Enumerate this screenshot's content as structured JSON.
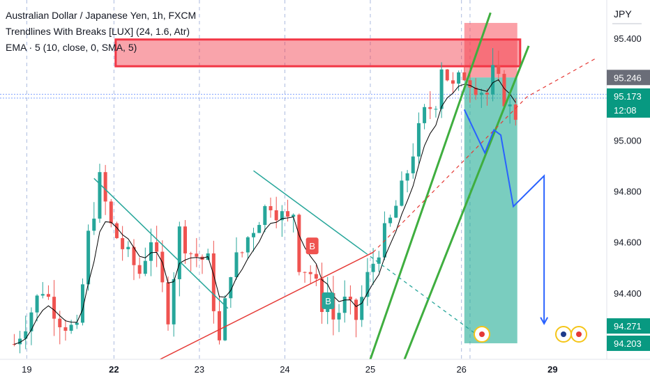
{
  "header": {
    "title": "Australian Dollar / Japanese Yen, 1h, FXCM",
    "indicator_1": "Trendlines With Breaks [LUX] (24, 1.6, Atr)",
    "indicator_2": "EMA · 5 (10, close, 0, SMA, 5)"
  },
  "currency_label": "JPY",
  "colors": {
    "up": "#26a69a",
    "down": "#ef5350",
    "channel": "#3fae3f",
    "projection": "#2962ff",
    "supply_zone": "#f23645",
    "price_tag": "#089981",
    "stop_zone": "#f7525f",
    "target_zone": "#22ab94",
    "trendline_red": "#e53935",
    "trendline_teal": "#26a69a"
  },
  "chart_data": {
    "type": "candlestick",
    "symbol": "AUDJPY",
    "timeframe": "1h",
    "y_axis": {
      "ticks": [
        "95.400",
        "95.000",
        "94.800",
        "94.600",
        "94.400"
      ],
      "range": [
        94.14,
        95.55
      ]
    },
    "x_axis": {
      "ticks": [
        "19",
        "22",
        "23",
        "24",
        "25",
        "26",
        "29"
      ],
      "bold_ticks": [
        "22",
        "29"
      ]
    },
    "price_labels": [
      {
        "label": "95.246",
        "value": 95.246,
        "color": "#6a6d78"
      },
      {
        "label": "95.173",
        "value": 95.173,
        "sub": "12:08",
        "color": "#089981"
      },
      {
        "label": "94.271",
        "value": 94.271,
        "color": "#089981"
      },
      {
        "label": "94.203",
        "value": 94.203,
        "color": "#089981"
      }
    ],
    "candle_path": [
      [
        0,
        94.2
      ],
      [
        5,
        94.42
      ],
      [
        8,
        94.3
      ],
      [
        11,
        94.24
      ],
      [
        13,
        94.62
      ],
      [
        15,
        94.84
      ],
      [
        17,
        94.66
      ],
      [
        20,
        94.54
      ],
      [
        22,
        94.48
      ],
      [
        24,
        94.62
      ],
      [
        27,
        94.32
      ],
      [
        29,
        94.64
      ],
      [
        31,
        94.56
      ],
      [
        34,
        94.52
      ],
      [
        36,
        94.2
      ],
      [
        38,
        94.5
      ],
      [
        40,
        94.56
      ],
      [
        41,
        94.62
      ],
      [
        43,
        94.7
      ],
      [
        45,
        94.76
      ],
      [
        47,
        94.7
      ],
      [
        48,
        94.68
      ],
      [
        49,
        94.72
      ],
      [
        50,
        94.52
      ],
      [
        52,
        94.48
      ],
      [
        54,
        94.36
      ],
      [
        55,
        94.4
      ],
      [
        56,
        94.3
      ],
      [
        58,
        94.36
      ],
      [
        60,
        94.3
      ],
      [
        62,
        94.46
      ],
      [
        64,
        94.58
      ],
      [
        66,
        94.68
      ],
      [
        68,
        94.8
      ],
      [
        70,
        94.96
      ],
      [
        72,
        95.1
      ],
      [
        74,
        95.16
      ],
      [
        75,
        95.3
      ],
      [
        77,
        95.2
      ],
      [
        79,
        95.26
      ],
      [
        81,
        95.22
      ],
      [
        83,
        95.18
      ],
      [
        84,
        95.26
      ],
      [
        85,
        95.22
      ],
      [
        86,
        95.17
      ],
      [
        87,
        95.12
      ],
      [
        88,
        95.1
      ]
    ],
    "supply_zone": {
      "t_start": 17.8,
      "t_end": 88.8,
      "y_top": 95.395,
      "y_bottom": 95.29
    },
    "position": {
      "entry": 95.246,
      "stop": 95.46,
      "target": 94.203,
      "t_start": 79,
      "t_end": 88.3
    },
    "channel": {
      "upper": [
        [
          62.5,
          94.14
        ],
        [
          83.6,
          95.5
        ]
      ],
      "lower": [
        [
          68.5,
          94.14
        ],
        [
          90.3,
          95.37
        ]
      ]
    },
    "trendlines": {
      "red": [
        [
          25.6,
          94.14
        ],
        [
          63,
          94.56
        ],
        [
          90,
          95.17
        ],
        [
          102,
          95.32
        ]
      ],
      "red_dashed_from": 63,
      "teal_1": [
        [
          14,
          94.85
        ],
        [
          37.5,
          94.34
        ]
      ],
      "teal_2": [
        [
          42,
          94.88
        ],
        [
          61.5,
          94.56
        ]
      ],
      "teal_2_dashed_to": [
        81,
        94.24
      ]
    },
    "signals": [
      {
        "label": "B",
        "t": 52.3,
        "value": 94.585,
        "color": "#ef5350"
      },
      {
        "label": "B",
        "t": 55.1,
        "value": 94.37,
        "color": "#26a69a"
      }
    ],
    "projection_path": [
      [
        79,
        95.12
      ],
      [
        82.6,
        94.95
      ],
      [
        84.2,
        95.04
      ],
      [
        85.4,
        95.02
      ],
      [
        87.6,
        94.74
      ],
      [
        93,
        94.86
      ],
      [
        93,
        94.28
      ]
    ],
    "vertical_gridlines": [
      2.2,
      17.5,
      32.5,
      47.5,
      62.5,
      78.5,
      80
    ],
    "time_range": [
      -2.5,
      104
    ]
  }
}
